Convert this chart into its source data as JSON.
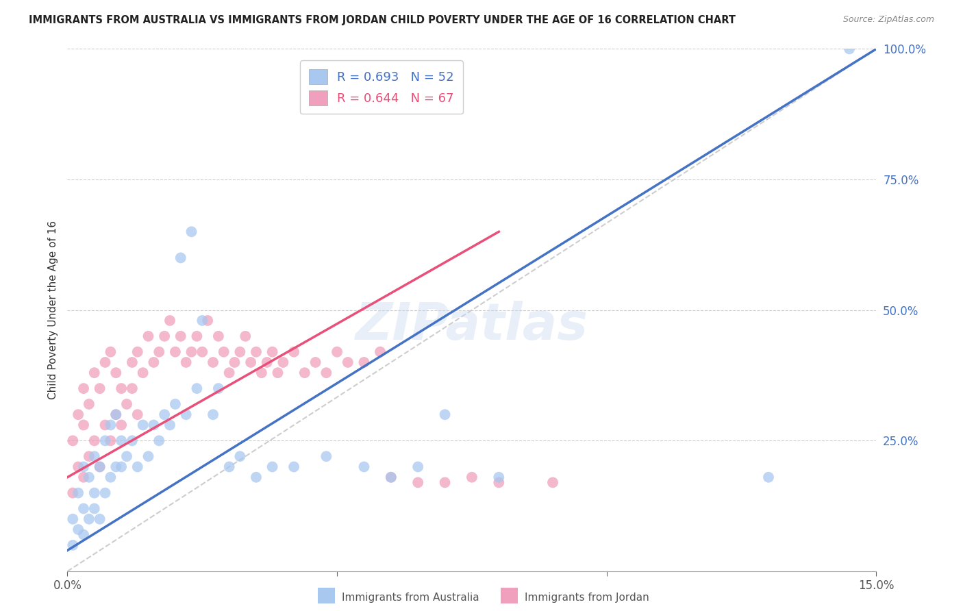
{
  "title": "IMMIGRANTS FROM AUSTRALIA VS IMMIGRANTS FROM JORDAN CHILD POVERTY UNDER THE AGE OF 16 CORRELATION CHART",
  "source": "Source: ZipAtlas.com",
  "ylabel": "Child Poverty Under the Age of 16",
  "x_min": 0.0,
  "x_max": 0.15,
  "y_min": 0.0,
  "y_max": 1.0,
  "australia_R": 0.693,
  "australia_N": 52,
  "jordan_R": 0.644,
  "jordan_N": 67,
  "australia_color": "#A8C8F0",
  "jordan_color": "#F0A0BC",
  "australia_line_color": "#4472C4",
  "jordan_line_color": "#E8507A",
  "ref_line_color": "#C8C8C8",
  "legend_label_australia": "Immigrants from Australia",
  "legend_label_jordan": "Immigrants from Jordan",
  "watermark": "ZIPatlas",
  "australia_x": [
    0.001,
    0.001,
    0.002,
    0.002,
    0.003,
    0.003,
    0.003,
    0.004,
    0.004,
    0.005,
    0.005,
    0.005,
    0.006,
    0.006,
    0.007,
    0.007,
    0.008,
    0.008,
    0.009,
    0.009,
    0.01,
    0.01,
    0.011,
    0.012,
    0.013,
    0.014,
    0.015,
    0.016,
    0.017,
    0.018,
    0.019,
    0.02,
    0.021,
    0.022,
    0.023,
    0.024,
    0.025,
    0.027,
    0.028,
    0.03,
    0.032,
    0.035,
    0.038,
    0.042,
    0.048,
    0.055,
    0.06,
    0.065,
    0.07,
    0.08,
    0.13,
    0.145
  ],
  "australia_y": [
    0.05,
    0.1,
    0.08,
    0.15,
    0.07,
    0.12,
    0.2,
    0.1,
    0.18,
    0.12,
    0.15,
    0.22,
    0.1,
    0.2,
    0.15,
    0.25,
    0.18,
    0.28,
    0.2,
    0.3,
    0.2,
    0.25,
    0.22,
    0.25,
    0.2,
    0.28,
    0.22,
    0.28,
    0.25,
    0.3,
    0.28,
    0.32,
    0.6,
    0.3,
    0.65,
    0.35,
    0.48,
    0.3,
    0.35,
    0.2,
    0.22,
    0.18,
    0.2,
    0.2,
    0.22,
    0.2,
    0.18,
    0.2,
    0.3,
    0.18,
    0.18,
    1.0
  ],
  "jordan_x": [
    0.001,
    0.001,
    0.002,
    0.002,
    0.003,
    0.003,
    0.003,
    0.004,
    0.004,
    0.005,
    0.005,
    0.006,
    0.006,
    0.007,
    0.007,
    0.008,
    0.008,
    0.009,
    0.009,
    0.01,
    0.01,
    0.011,
    0.012,
    0.012,
    0.013,
    0.013,
    0.014,
    0.015,
    0.016,
    0.017,
    0.018,
    0.019,
    0.02,
    0.021,
    0.022,
    0.023,
    0.024,
    0.025,
    0.026,
    0.027,
    0.028,
    0.029,
    0.03,
    0.031,
    0.032,
    0.033,
    0.034,
    0.035,
    0.036,
    0.037,
    0.038,
    0.039,
    0.04,
    0.042,
    0.044,
    0.046,
    0.048,
    0.05,
    0.052,
    0.055,
    0.058,
    0.06,
    0.065,
    0.07,
    0.075,
    0.08,
    0.09
  ],
  "jordan_y": [
    0.15,
    0.25,
    0.2,
    0.3,
    0.18,
    0.28,
    0.35,
    0.22,
    0.32,
    0.25,
    0.38,
    0.2,
    0.35,
    0.28,
    0.4,
    0.25,
    0.42,
    0.3,
    0.38,
    0.28,
    0.35,
    0.32,
    0.35,
    0.4,
    0.3,
    0.42,
    0.38,
    0.45,
    0.4,
    0.42,
    0.45,
    0.48,
    0.42,
    0.45,
    0.4,
    0.42,
    0.45,
    0.42,
    0.48,
    0.4,
    0.45,
    0.42,
    0.38,
    0.4,
    0.42,
    0.45,
    0.4,
    0.42,
    0.38,
    0.4,
    0.42,
    0.38,
    0.4,
    0.42,
    0.38,
    0.4,
    0.38,
    0.42,
    0.4,
    0.4,
    0.42,
    0.18,
    0.17,
    0.17,
    0.18,
    0.17,
    0.17
  ],
  "aus_line_x0": 0.0,
  "aus_line_y0": 0.04,
  "aus_line_x1": 0.15,
  "aus_line_y1": 1.0,
  "jor_line_x0": 0.0,
  "jor_line_y0": 0.18,
  "jor_line_x1": 0.08,
  "jor_line_y1": 0.65
}
